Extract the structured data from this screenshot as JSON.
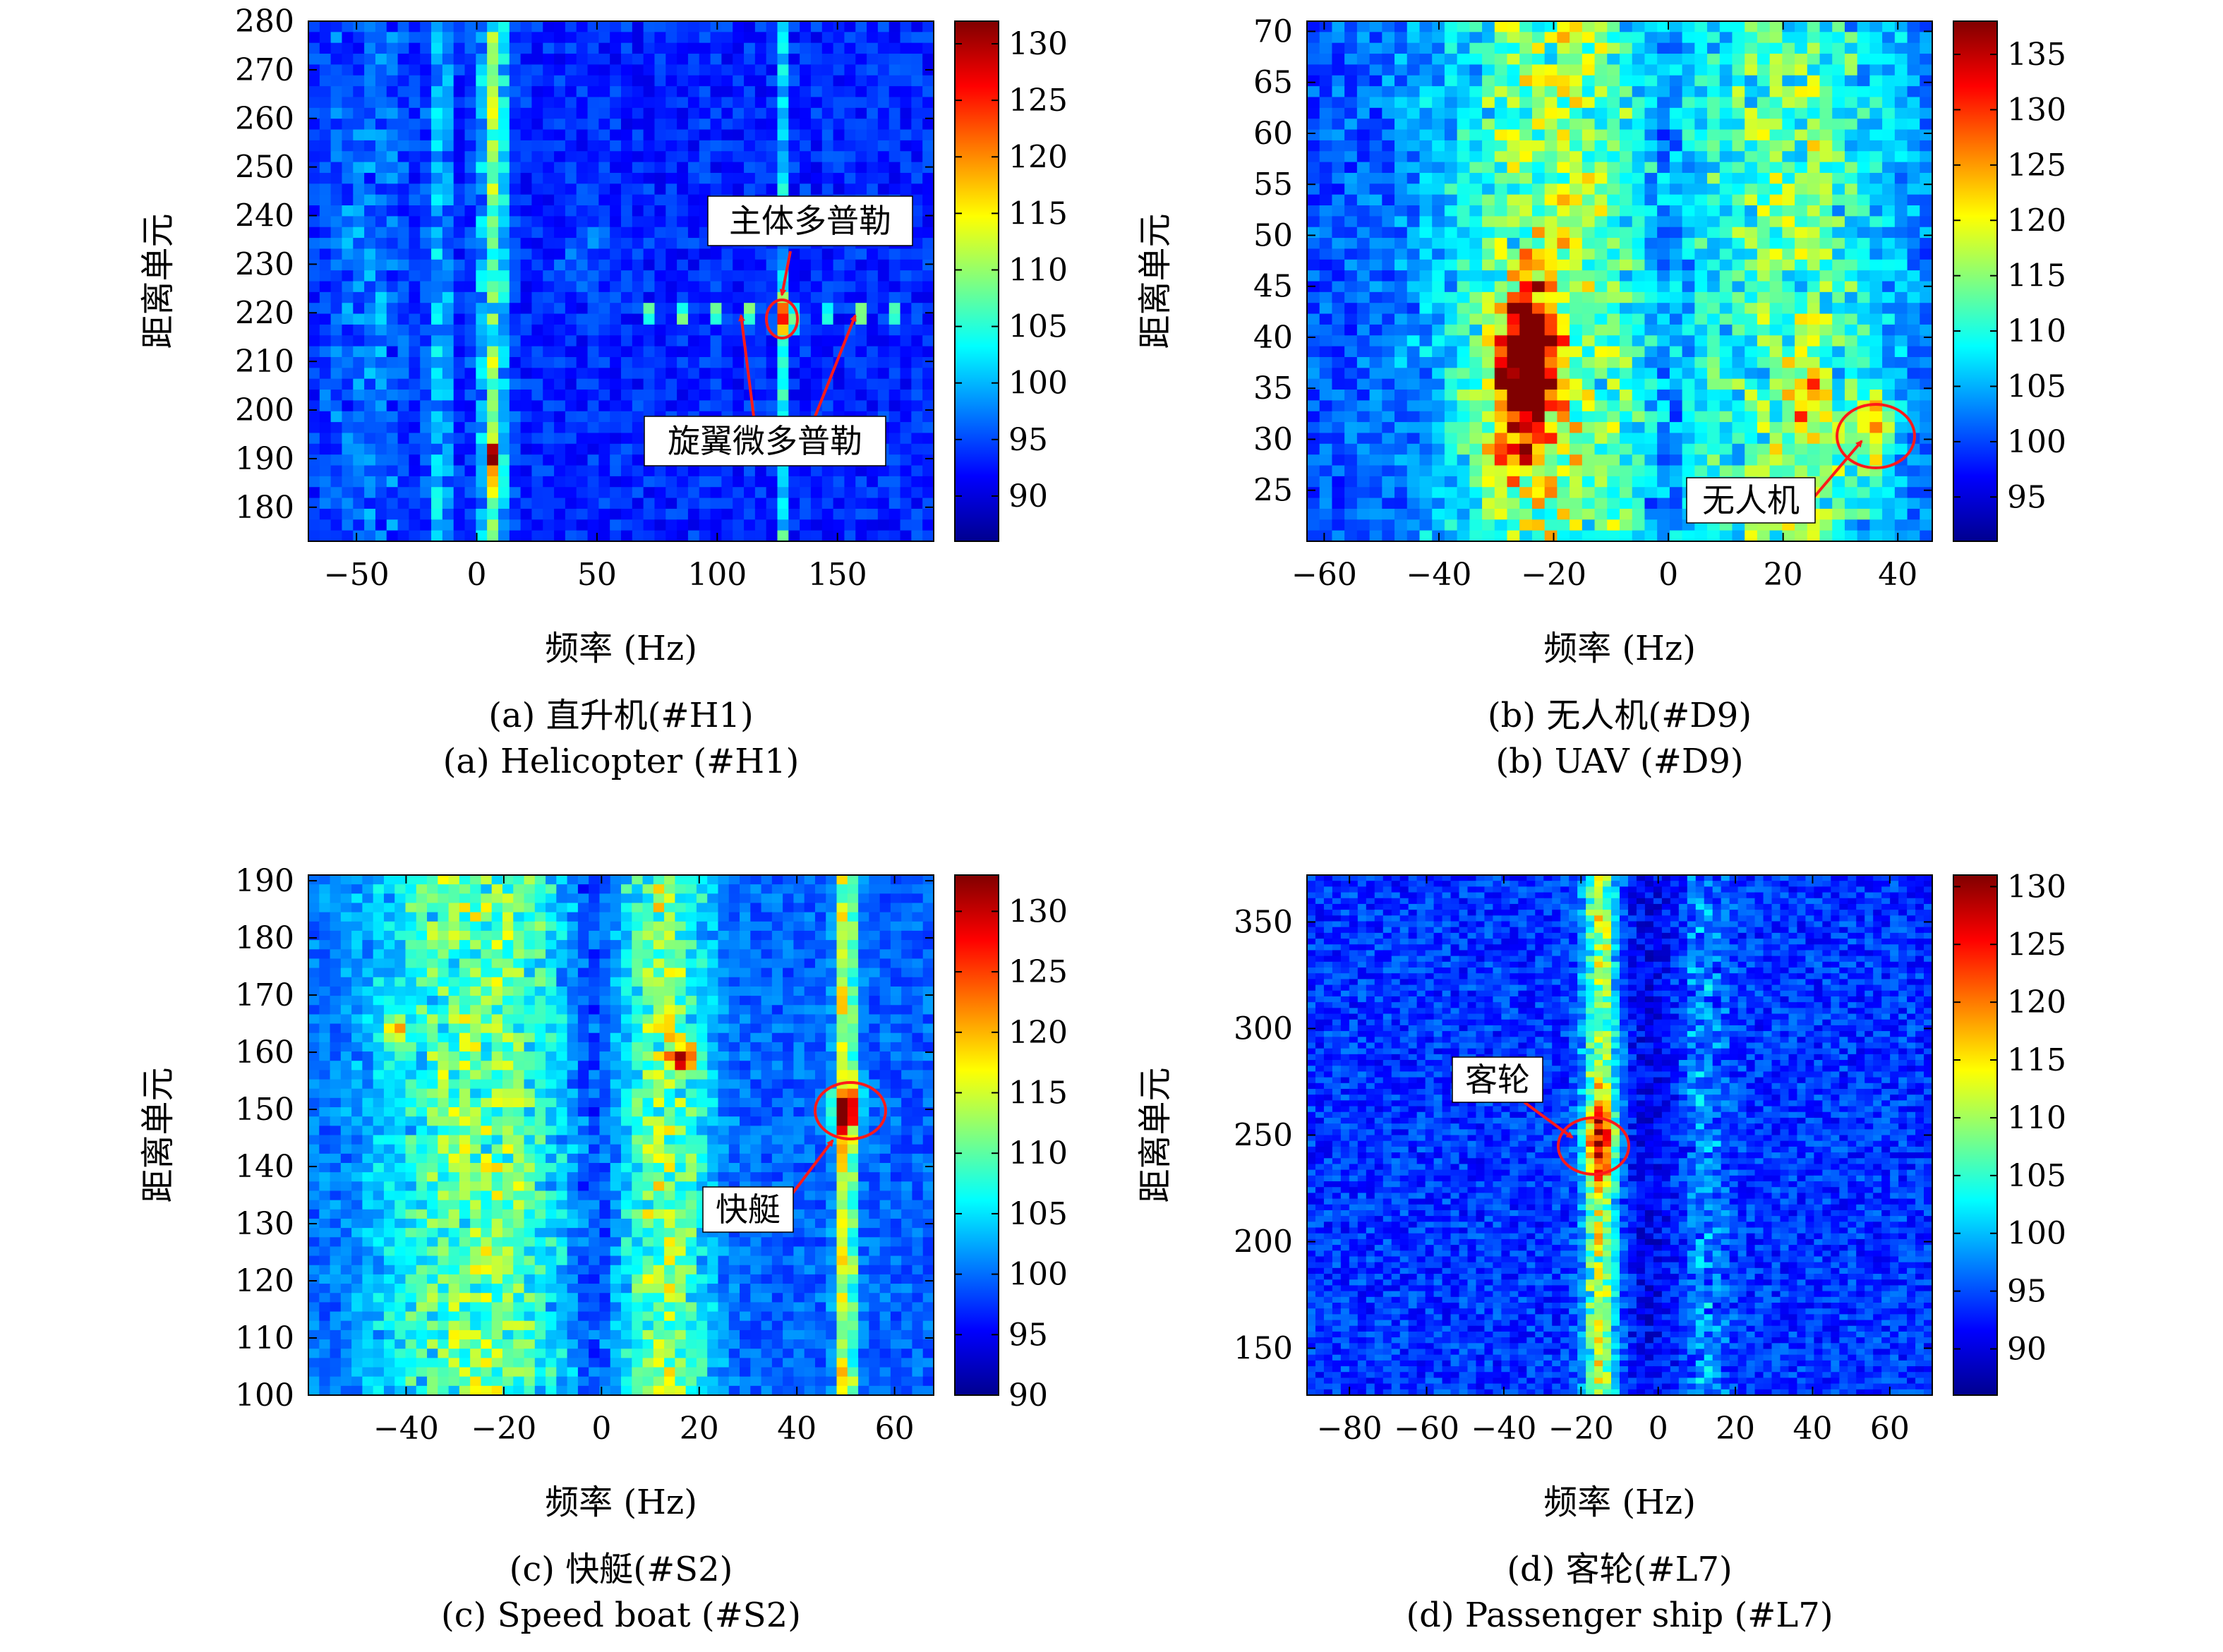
{
  "colorscale": "jet",
  "chart_data": [
    {
      "type": "heatmap",
      "panel": "a",
      "xlabel": "频率 (Hz)",
      "ylabel": "距离单元",
      "xlim": [
        -70,
        190
      ],
      "ylim": [
        173,
        280
      ],
      "xticks": [
        -50,
        0,
        50,
        100,
        150
      ],
      "yticks": [
        180,
        190,
        200,
        210,
        220,
        230,
        240,
        250,
        260,
        270,
        280
      ],
      "colorbar": {
        "min": 86,
        "max": 132,
        "ticks": [
          90,
          95,
          100,
          105,
          110,
          115,
          120,
          125,
          130
        ]
      },
      "caption_cn": "(a) 直升机(#H1)",
      "caption_en": "(a) Helicopter (#H1)",
      "annotations": [
        {
          "text": "主体多普勒",
          "target": {
            "x": 129,
            "y": 219
          }
        },
        {
          "text": "旋翼微多普勒",
          "targets": [
            {
              "x": 113,
              "y": 219
            },
            {
              "x": 162,
              "y": 219
            }
          ]
        }
      ]
    },
    {
      "type": "heatmap",
      "panel": "b",
      "xlabel": "频率 (Hz)",
      "ylabel": "距离单元",
      "xlim": [
        -63,
        46
      ],
      "ylim": [
        20,
        71
      ],
      "xticks": [
        -60,
        -40,
        -20,
        0,
        20,
        40
      ],
      "yticks": [
        25,
        30,
        35,
        40,
        45,
        50,
        55,
        60,
        65,
        70
      ],
      "colorbar": {
        "min": 91,
        "max": 138,
        "ticks": [
          95,
          100,
          105,
          110,
          115,
          120,
          125,
          130,
          135
        ]
      },
      "caption_cn": "(b) 无人机(#D9)",
      "caption_en": "(b) UAV (#D9)",
      "annotations": [
        {
          "text": "无人机",
          "target": {
            "x": 36,
            "y": 31
          }
        }
      ]
    },
    {
      "type": "heatmap",
      "panel": "c",
      "xlabel": "频率 (Hz)",
      "ylabel": "距离单元",
      "xlim": [
        -60,
        68
      ],
      "ylim": [
        100,
        191
      ],
      "xticks": [
        -40,
        -20,
        0,
        20,
        40,
        60
      ],
      "yticks": [
        100,
        110,
        120,
        130,
        140,
        150,
        160,
        170,
        180,
        190
      ],
      "colorbar": {
        "min": 90,
        "max": 133,
        "ticks": [
          90,
          95,
          100,
          105,
          110,
          115,
          120,
          125,
          130
        ]
      },
      "caption_cn": "(c) 快艇(#S2)",
      "caption_en": "(c) Speed boat (#S2)",
      "annotations": [
        {
          "text": "快艇",
          "target": {
            "x": 50,
            "y": 150
          }
        }
      ]
    },
    {
      "type": "heatmap",
      "panel": "d",
      "xlabel": "频率 (Hz)",
      "ylabel": "距离单元",
      "xlim": [
        -91,
        71
      ],
      "ylim": [
        128,
        372
      ],
      "xticks": [
        -80,
        -60,
        -40,
        -20,
        0,
        20,
        40,
        60
      ],
      "yticks": [
        150,
        200,
        250,
        300,
        350
      ],
      "colorbar": {
        "min": 86,
        "max": 131,
        "ticks": [
          90,
          95,
          100,
          105,
          110,
          115,
          120,
          125,
          130
        ]
      },
      "caption_cn": "(d) 客轮(#L7)",
      "caption_en": "(d) Passenger ship (#L7)",
      "annotations": [
        {
          "text": "客轮",
          "target": {
            "x": -15,
            "y": 247
          }
        }
      ]
    }
  ]
}
